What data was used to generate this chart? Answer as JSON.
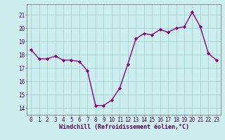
{
  "x": [
    0,
    1,
    2,
    3,
    4,
    5,
    6,
    7,
    8,
    9,
    10,
    11,
    12,
    13,
    14,
    15,
    16,
    17,
    18,
    19,
    20,
    21,
    22,
    23
  ],
  "y": [
    18.4,
    17.7,
    17.7,
    17.9,
    17.6,
    17.6,
    17.5,
    16.8,
    14.2,
    14.2,
    14.6,
    15.5,
    17.3,
    19.2,
    19.6,
    19.5,
    19.9,
    19.7,
    20.0,
    20.1,
    21.2,
    20.1,
    18.1,
    17.6
  ],
  "line_color": "#880088",
  "marker": "D",
  "marker_size": 2.2,
  "bg_color": "#cceeee",
  "grid_color": "#99cccc",
  "xlabel": "Windchill (Refroidissement éolien,°C)",
  "xlabel_fontsize": 6.0,
  "ylim": [
    13.5,
    21.8
  ],
  "xlim": [
    -0.5,
    23.5
  ],
  "yticks": [
    14,
    15,
    16,
    17,
    18,
    19,
    20,
    21
  ],
  "xticks": [
    0,
    1,
    2,
    3,
    4,
    5,
    6,
    7,
    8,
    9,
    10,
    11,
    12,
    13,
    14,
    15,
    16,
    17,
    18,
    19,
    20,
    21,
    22,
    23
  ],
  "tick_fontsize": 5.5,
  "line_width": 1.0,
  "spine_color": "#666666"
}
